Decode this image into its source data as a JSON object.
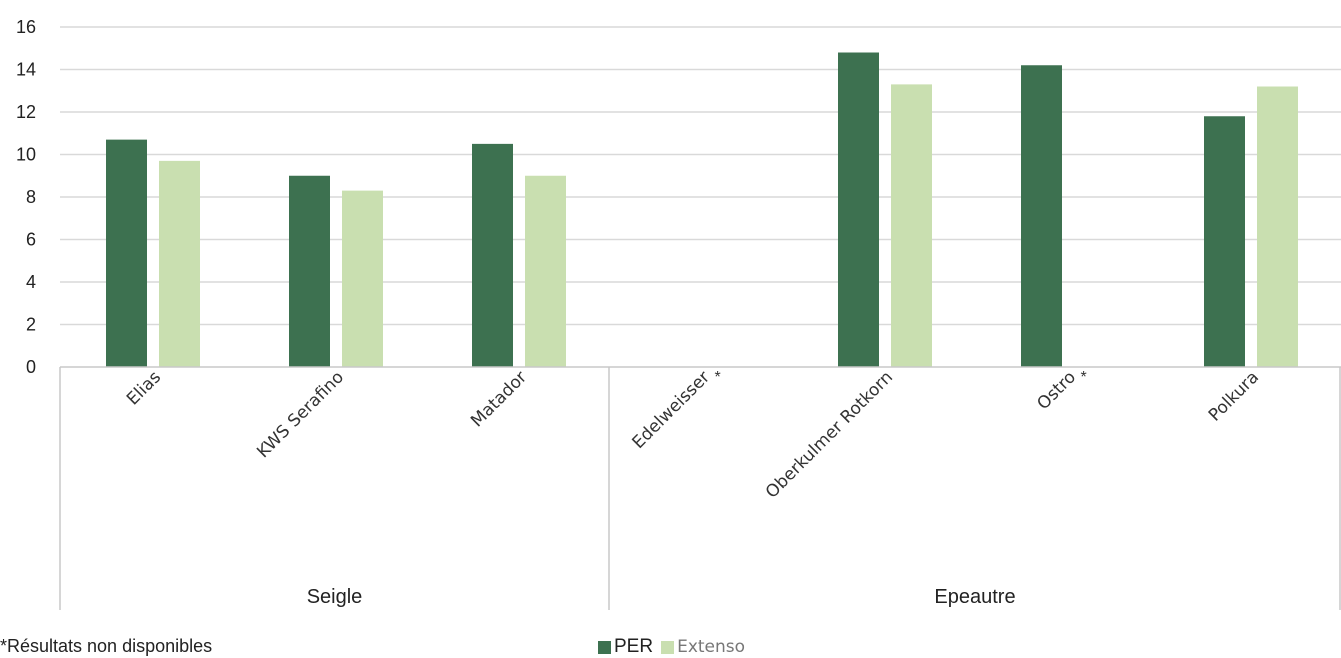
{
  "chart_data": {
    "type": "bar",
    "categories": [
      "Elias",
      "KWS Serafino",
      "Matador",
      "Edelweisser",
      "Oberkulmer Rotkorn",
      "Ostro",
      "Polkura"
    ],
    "category_markers": [
      "",
      "",
      "",
      "*",
      "",
      "*",
      ""
    ],
    "groups": [
      {
        "label": "Seigle",
        "categories": [
          "Elias",
          "KWS Serafino",
          "Matador"
        ]
      },
      {
        "label": "Epeautre",
        "categories": [
          "Edelweisser",
          "Oberkulmer Rotkorn",
          "Ostro",
          "Polkura"
        ]
      }
    ],
    "series": [
      {
        "name": "PER",
        "color": "#3d7150",
        "values": [
          10.7,
          9.0,
          10.5,
          null,
          14.8,
          14.2,
          11.8
        ]
      },
      {
        "name": "Extenso",
        "color": "#c9dfb0",
        "values": [
          9.7,
          8.3,
          9.0,
          null,
          13.3,
          null,
          13.2
        ]
      }
    ],
    "ylim": [
      0,
      16
    ],
    "yticks": [
      0,
      2,
      4,
      6,
      8,
      10,
      12,
      14,
      16
    ],
    "grid": true,
    "legend_position": "bottom",
    "footnote": "*Résultats non disponibles"
  }
}
